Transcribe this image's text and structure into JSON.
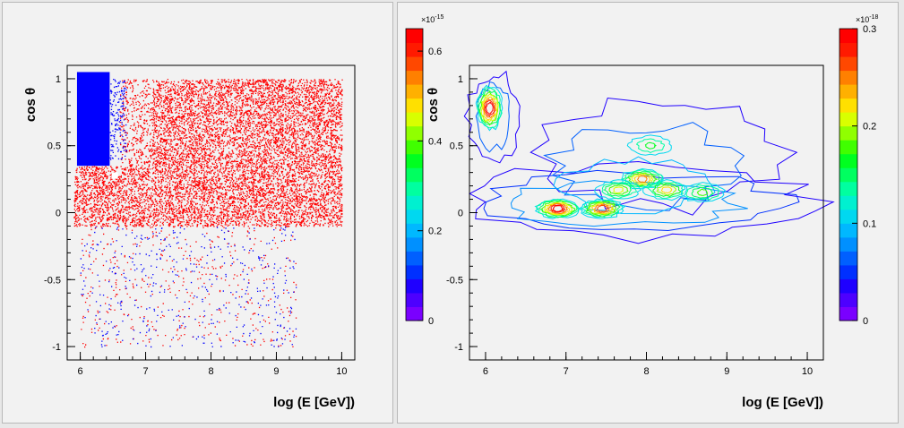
{
  "window": {
    "background": "#ffff00"
  },
  "chart_data": [
    {
      "type": "scatter",
      "panel": "left",
      "xlabel": "log (E [GeV])",
      "ylabel": "cos θ",
      "xlim": [
        5.8,
        10.2
      ],
      "ylim": [
        -1.1,
        1.1
      ],
      "xticks": [
        "6",
        "7",
        "8",
        "9",
        "10"
      ],
      "yticks": [
        "-1",
        "-0.5",
        "0",
        "0.5",
        "1"
      ],
      "series": [
        {
          "color": "#ff0000",
          "regions": [
            {
              "x": [
                7.1,
                10.0
              ],
              "y": [
                -0.1,
                1.0
              ],
              "density": "high"
            },
            {
              "x": [
                5.9,
                7.1
              ],
              "y": [
                -0.1,
                0.35
              ],
              "density": "high"
            },
            {
              "x": [
                6.6,
                7.1
              ],
              "y": [
                0.35,
                1.0
              ],
              "density": "medium"
            },
            {
              "x": [
                6.0,
                9.3
              ],
              "y": [
                -1.0,
                -0.1
              ],
              "density": "low"
            }
          ]
        },
        {
          "color": "#0000ff",
          "regions": [
            {
              "x": [
                5.95,
                6.45
              ],
              "y": [
                0.35,
                1.05
              ],
              "density": "solid"
            },
            {
              "x": [
                6.45,
                6.7
              ],
              "y": [
                0.4,
                1.0
              ],
              "density": "medium"
            },
            {
              "x": [
                6.0,
                9.3
              ],
              "y": [
                -1.0,
                -0.1
              ],
              "density": "low"
            }
          ]
        }
      ]
    },
    {
      "type": "contour",
      "panel": "right",
      "xlabel": "log (E [GeV])",
      "ylabel": "cos θ",
      "xlim": [
        5.8,
        10.2
      ],
      "ylim": [
        -1.1,
        1.1
      ],
      "xticks": [
        "6",
        "7",
        "8",
        "9",
        "10"
      ],
      "yticks": [
        "-1",
        "-0.5",
        "0",
        "0.5",
        "1"
      ],
      "colorbar": {
        "min": 0,
        "max": 0.3,
        "ticks": [
          "0",
          "0.1",
          "0.2",
          "0.3"
        ],
        "exponent": "×10",
        "exponent_power": "-18"
      },
      "peaks": [
        {
          "x": 6.05,
          "y": 0.78,
          "level": 0.3
        },
        {
          "x": 6.9,
          "y": 0.03,
          "level": 0.3
        },
        {
          "x": 7.45,
          "y": 0.03,
          "level": 0.25
        },
        {
          "x": 7.95,
          "y": 0.25,
          "level": 0.22
        },
        {
          "x": 8.25,
          "y": 0.17,
          "level": 0.18
        },
        {
          "x": 7.65,
          "y": 0.17,
          "level": 0.15
        },
        {
          "x": 8.05,
          "y": 0.5,
          "level": 0.1
        },
        {
          "x": 8.7,
          "y": 0.15,
          "level": 0.12
        }
      ]
    },
    {
      "type": "colorbar",
      "panel": "middle",
      "min": 0,
      "max": 0.65,
      "ticks": [
        "0",
        "0.2",
        "0.4",
        "0.6"
      ],
      "exponent": "×10",
      "exponent_power": "-15"
    }
  ]
}
